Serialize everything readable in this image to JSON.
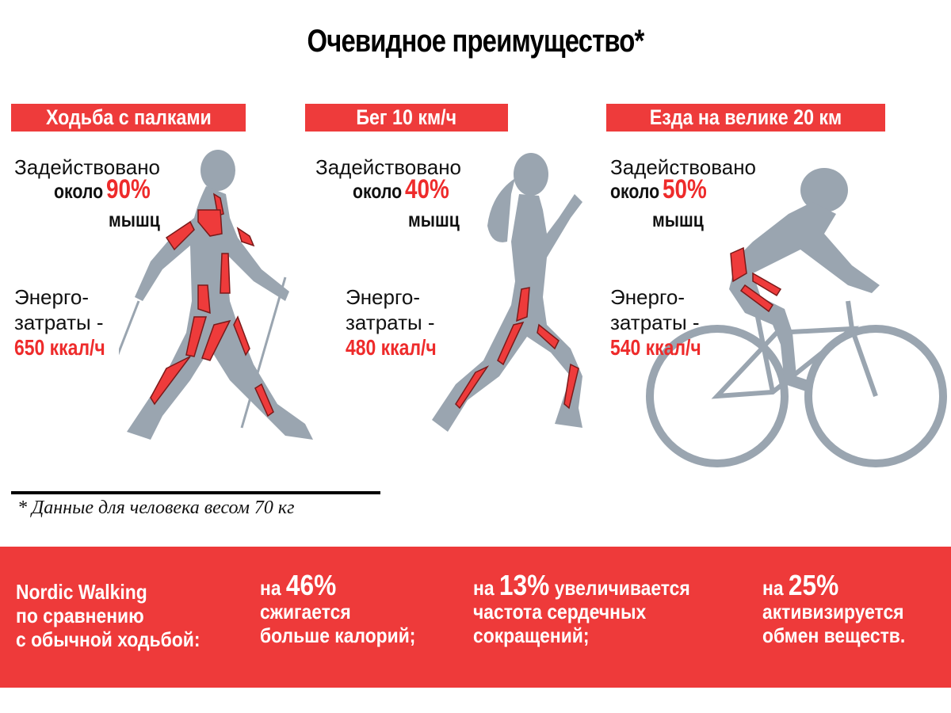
{
  "title": "Очевидное преимущество*",
  "colors": {
    "accent_red": "#ee3a3a",
    "figure_gray": "#9aa5b0",
    "muscle_red": "#ee3b3b"
  },
  "panels": [
    {
      "header": "Ходьба с палками",
      "line1": "Задействовано",
      "about": "около",
      "percent": "90%",
      "muscles": "мышц",
      "energy1": "Энерго-",
      "energy2": "затраты -",
      "kcal": "650 ккал/ч",
      "figure": "nordic-walker-icon"
    },
    {
      "header": "Бег 10 км/ч",
      "line1": "Задействовано",
      "about": "около",
      "percent": "40%",
      "muscles": "мышц",
      "energy1": "Энерго-",
      "energy2": "затраты -",
      "kcal": "480 ккал/ч",
      "figure": "runner-icon"
    },
    {
      "header": "Езда на велике 20 км",
      "line1": "Задействовано",
      "about": "около",
      "percent": "50%",
      "muscles": "мышц",
      "energy1": "Энерго-",
      "energy2": "затраты -",
      "kcal": "540 ккал/ч",
      "figure": "cyclist-icon"
    }
  ],
  "footnote": "* Данные для человека весом 70 кг",
  "summary": {
    "intro": [
      "Nordic Walking",
      "по сравнению",
      "с обычной ходьбой:"
    ],
    "items": [
      {
        "prefix": "на",
        "value": "46%",
        "suffix": "",
        "lines": [
          "сжигается",
          "больше калорий;"
        ]
      },
      {
        "prefix": "на",
        "value": "13%",
        "suffix": "увеличивается",
        "lines": [
          "частота сердечных",
          "сокращений;"
        ]
      },
      {
        "prefix": "на",
        "value": "25%",
        "suffix": "",
        "lines": [
          "активизируется",
          "обмен веществ."
        ]
      }
    ]
  }
}
